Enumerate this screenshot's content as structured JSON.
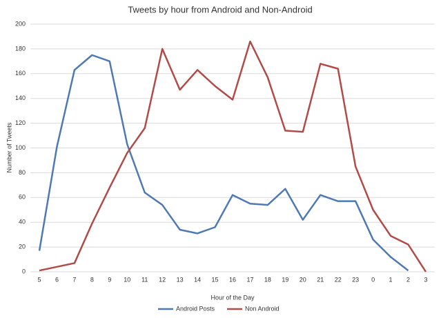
{
  "chart_data": {
    "type": "line",
    "title": "Tweets by hour from Android and Non-Android",
    "x_label": "Hour of the Day",
    "y_label": "Number of Tweets",
    "categories": [
      "5",
      "6",
      "7",
      "8",
      "9",
      "10",
      "11",
      "12",
      "13",
      "14",
      "15",
      "16",
      "17",
      "18",
      "19",
      "20",
      "21",
      "22",
      "23",
      "0",
      "1",
      "2",
      "3"
    ],
    "series": [
      {
        "name": "Android Posts",
        "color": "#4e79b3",
        "values": [
          17,
          101,
          163,
          175,
          170,
          103,
          64,
          54,
          34,
          31,
          36,
          62,
          55,
          54,
          67,
          42,
          62,
          57,
          57,
          26,
          12,
          1,
          null
        ]
      },
      {
        "name": "Non Android",
        "color": "#b24a47",
        "values": [
          1,
          4,
          7,
          39,
          68,
          96,
          116,
          180,
          147,
          163,
          150,
          139,
          186,
          157,
          114,
          113,
          168,
          164,
          85,
          50,
          29,
          22,
          0
        ]
      }
    ],
    "ylim": [
      0,
      200
    ],
    "yticks": [
      0,
      20,
      40,
      60,
      80,
      100,
      120,
      140,
      160,
      180,
      200
    ],
    "grid": true,
    "legend": "bottom"
  }
}
